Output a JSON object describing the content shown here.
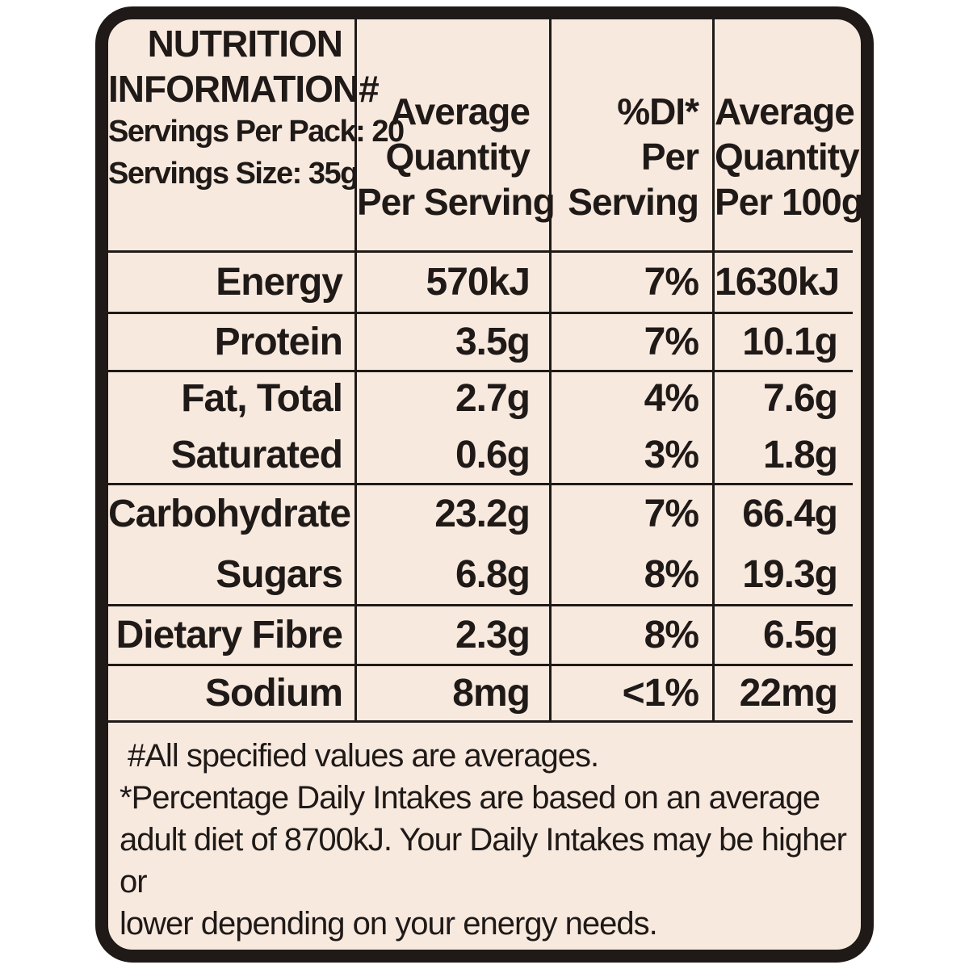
{
  "header": {
    "title_line1": "NUTRITION",
    "title_line2": "INFORMATION#",
    "servings_per_pack": "Servings Per Pack: 20",
    "serving_size": "Servings Size: 35g",
    "col_serving": [
      "Average",
      "Quantity",
      "Per Serving"
    ],
    "col_di": [
      "%DI*",
      "Per",
      "Serving"
    ],
    "col_100g": [
      "Average",
      "Quantity",
      "Per 100g"
    ]
  },
  "rows": [
    {
      "label": "Energy",
      "per_serving": "570kJ",
      "di": "7%",
      "per_100g": "1630kJ"
    },
    {
      "label": "Protein",
      "per_serving": "3.5g",
      "di": "7%",
      "per_100g": "10.1g"
    },
    {
      "label": "Fat, Total",
      "per_serving": "2.7g",
      "di": "4%",
      "per_100g": "7.6g"
    },
    {
      "label": "Saturated",
      "per_serving": "0.6g",
      "di": "3%",
      "per_100g": "1.8g"
    },
    {
      "label": "Carbohydrate",
      "per_serving": "23.2g",
      "di": "7%",
      "per_100g": "66.4g"
    },
    {
      "label": "Sugars",
      "per_serving": "6.8g",
      "di": "8%",
      "per_100g": "19.3g"
    },
    {
      "label": "Dietary Fibre",
      "per_serving": "2.3g",
      "di": "8%",
      "per_100g": "6.5g"
    },
    {
      "label": "Sodium",
      "per_serving": "8mg",
      "di": "<1%",
      "per_100g": "22mg"
    }
  ],
  "footnotes": {
    "averages": "#All specified values are averages.",
    "di_line1": "*Percentage Daily Intakes are based on an average",
    "di_line2": "adult diet of 8700kJ. Your Daily Intakes may be higher or",
    "di_line3": "lower depending on your energy needs."
  },
  "colors": {
    "background": "#f8e9df",
    "ink": "#1f1a17"
  }
}
